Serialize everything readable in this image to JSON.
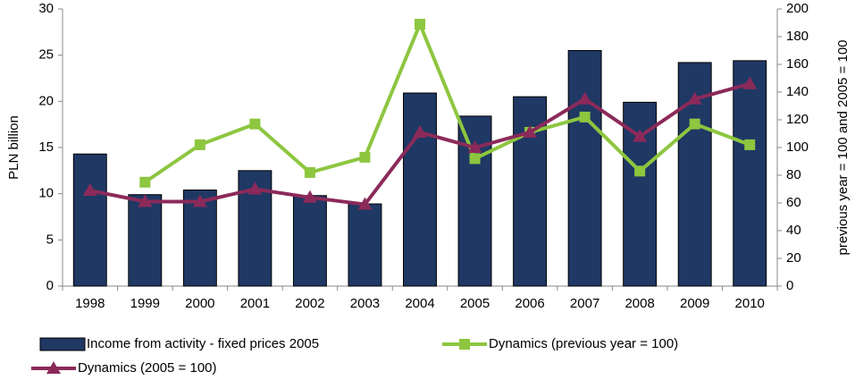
{
  "chart_data": {
    "type": "bar-line",
    "categories": [
      "1998",
      "1999",
      "2000",
      "2001",
      "2002",
      "2003",
      "2004",
      "2005",
      "2006",
      "2007",
      "2008",
      "2009",
      "2010"
    ],
    "series": [
      {
        "name": "Income from activity - fixed prices 2005",
        "type": "bar",
        "color": "#1f3864",
        "values": [
          14.3,
          9.9,
          10.4,
          12.5,
          9.8,
          8.9,
          20.9,
          18.4,
          20.5,
          25.5,
          19.9,
          24.2,
          24.4
        ]
      },
      {
        "name": "Dynamics (previous year = 100)",
        "type": "line",
        "marker": "square",
        "axis": "y2",
        "color": "#8dc63f",
        "values": [
          null,
          75,
          102,
          117,
          82,
          93,
          189,
          92,
          111,
          122,
          83,
          117,
          102
        ]
      },
      {
        "name": "Dynamics (2005 = 100)",
        "type": "line",
        "marker": "triangle",
        "axis": "y2",
        "color": "#8b2a5a",
        "values": [
          69,
          61,
          61,
          70,
          64,
          59,
          111,
          100,
          111,
          135,
          108,
          135,
          146
        ]
      }
    ],
    "ylabel": "PLN billion",
    "y2label": "previous year = 100 and  2005 = 100",
    "ylim": [
      0,
      30
    ],
    "yticks": [
      0,
      5,
      10,
      15,
      20,
      25,
      30
    ],
    "y2lim": [
      0,
      200
    ],
    "y2ticks": [
      0,
      20,
      40,
      60,
      80,
      100,
      120,
      140,
      160,
      180,
      200
    ]
  }
}
